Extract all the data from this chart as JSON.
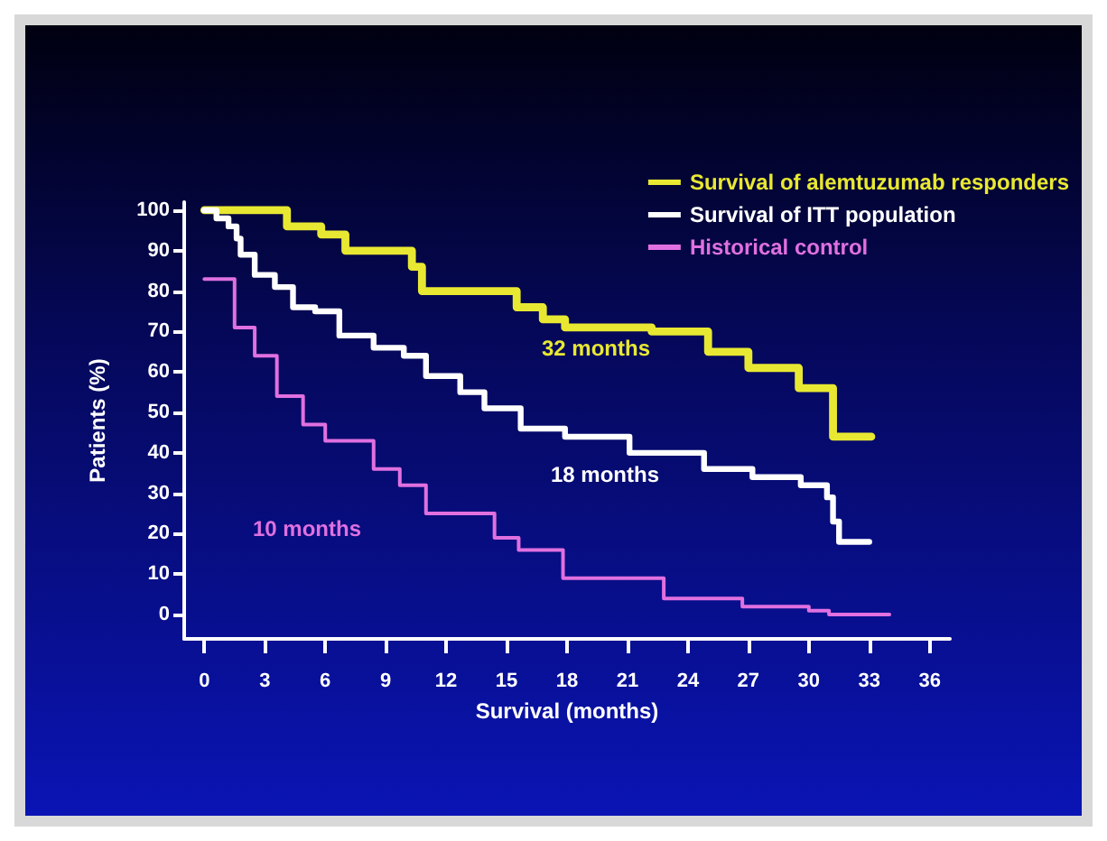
{
  "chart_data": {
    "type": "step",
    "xlabel": "Survival (months)",
    "ylabel": "Patients (%)",
    "xlim": [
      -1,
      37
    ],
    "xticks": [
      0,
      3,
      6,
      9,
      12,
      15,
      18,
      21,
      24,
      27,
      30,
      33,
      36
    ],
    "ylim": [
      -6,
      102
    ],
    "yticks": [
      0,
      10,
      20,
      30,
      40,
      50,
      60,
      70,
      80,
      90,
      100
    ],
    "grid": false,
    "legend": "top right",
    "marker": "none",
    "line_style": "solid",
    "series": [
      {
        "name": "Survival of alemtuzumab responders",
        "color": "#e8e832",
        "x": [
          0,
          4.1,
          5.8,
          7,
          10.3,
          10.8,
          15.5,
          16.8,
          17.9,
          22.2,
          25,
          27,
          29.5,
          31.2,
          33.1
        ],
        "values": [
          100,
          96,
          94,
          90,
          86,
          80,
          76,
          73,
          71,
          70,
          65,
          61,
          56,
          44,
          44
        ]
      },
      {
        "name": "Survival of ITT population",
        "color": "#ffffff",
        "x": [
          0,
          0.6,
          1.2,
          1.6,
          1.8,
          2.5,
          3.5,
          4.4,
          5.5,
          6.7,
          8.4,
          9.9,
          11,
          12.7,
          13.9,
          15.7,
          17.9,
          21.1,
          24.8,
          27.2,
          29.6,
          30.9,
          31.2,
          31.5,
          33
        ],
        "values": [
          100,
          98,
          96,
          93,
          89,
          84,
          81,
          76,
          75,
          69,
          66,
          64,
          59,
          55,
          51,
          46,
          44,
          40,
          36,
          34,
          32,
          29,
          23,
          18,
          18
        ]
      },
      {
        "name": "Historical control",
        "color": "#e070e0",
        "x": [
          0,
          1.5,
          2.5,
          3.6,
          4.9,
          6,
          8.4,
          9.7,
          11,
          14.4,
          15.6,
          17.8,
          22.8,
          26.7,
          30,
          31,
          34
        ],
        "values": [
          83,
          71,
          64,
          54,
          47,
          43,
          36,
          32,
          25,
          19,
          16,
          9,
          4,
          2,
          1,
          0,
          0
        ]
      }
    ],
    "annotations": [
      "32 months",
      "18 months",
      "10 months"
    ]
  }
}
